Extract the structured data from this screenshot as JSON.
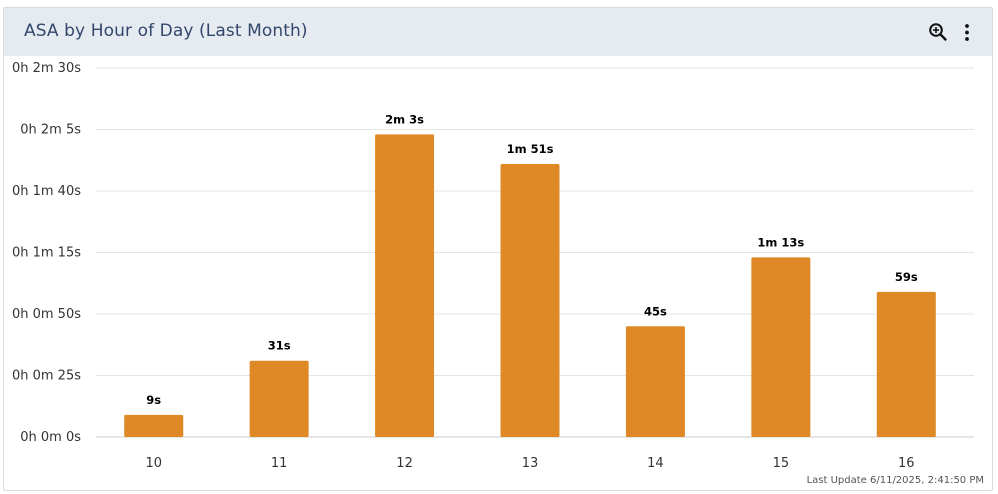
{
  "widget": {
    "title": "ASA by Hour of Day (Last Month)",
    "footer": "Last Update 6/11/2025, 2:41:50 PM",
    "icons": {
      "zoom": "zoom-in-icon",
      "more": "more-vertical-icon"
    }
  },
  "chart_data": {
    "type": "bar",
    "title": "ASA by Hour of Day (Last Month)",
    "xlabel": "",
    "ylabel": "",
    "categories": [
      "10",
      "11",
      "12",
      "13",
      "14",
      "15",
      "16"
    ],
    "values": [
      9,
      31,
      123,
      111,
      45,
      73,
      59
    ],
    "value_labels": [
      "9s",
      "31s",
      "2m 3s",
      "1m 51s",
      "45s",
      "1m 13s",
      "59s"
    ],
    "ylim": [
      0,
      150
    ],
    "y_ticks": [
      0,
      25,
      50,
      75,
      100,
      125,
      150
    ],
    "y_tick_labels": [
      "0h 0m 0s",
      "0h 0m 25s",
      "0h 0m 50s",
      "0h 1m 15s",
      "0h 1m 40s",
      "0h 2m 5s",
      "0h 2m 30s"
    ],
    "grid": true,
    "legend": "none",
    "colors": {
      "bar": "#de8925",
      "grid": "#e4e4e4",
      "axis": "#cccccc",
      "label": "#000000",
      "tick": "#333333"
    }
  }
}
